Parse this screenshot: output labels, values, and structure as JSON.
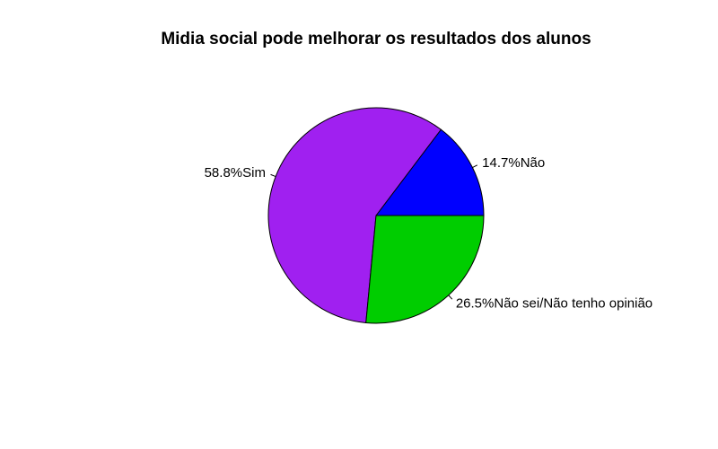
{
  "chart_data": {
    "type": "pie",
    "title": "Midia social pode melhorar os resultados dos alunos",
    "slices": [
      {
        "label": "14.7%Não",
        "value": 14.7,
        "color": "#0000FF"
      },
      {
        "label": "58.8%Sim",
        "value": 58.8,
        "color": "#A020F0"
      },
      {
        "label": "26.5%Não sei/Não tenho opinião",
        "value": 26.5,
        "color": "#00CD00"
      }
    ],
    "start": "3 o'clock",
    "direction": "counterclockwise",
    "legend": "none"
  }
}
